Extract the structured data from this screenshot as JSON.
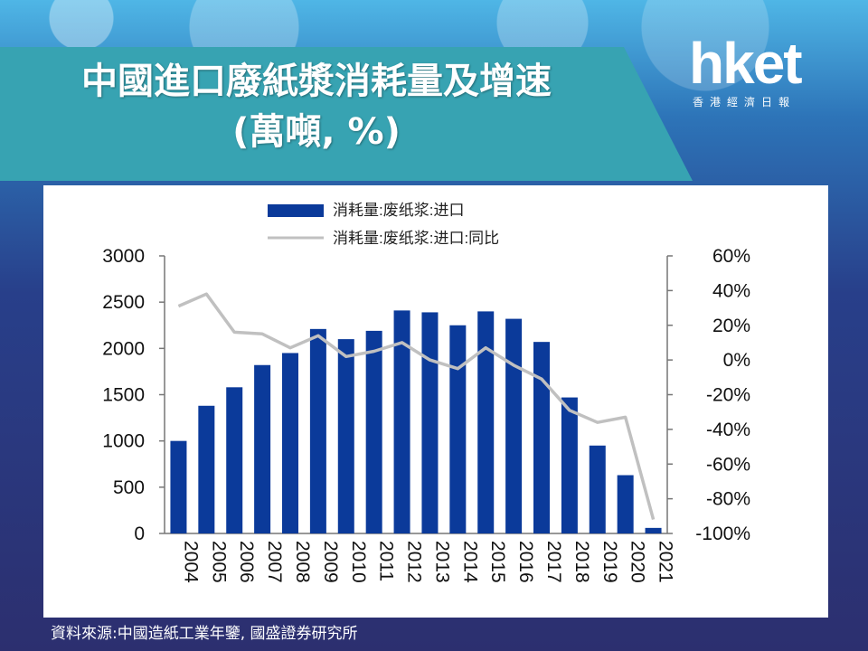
{
  "title_line1": "中國進口廢紙漿消耗量及增速",
  "title_line2": "(萬噸, %)",
  "logo": {
    "main": "hket",
    "sub": "香港經濟日報"
  },
  "source": "資料來源:中國造紙工業年鑒, 國盛證券研究所",
  "colors": {
    "bar": "#0b3a9a",
    "line": "#c0c0c0",
    "banner": "#37a3b2"
  },
  "chart_data": {
    "type": "bar",
    "categories": [
      "2004",
      "2005",
      "2006",
      "2007",
      "2008",
      "2009",
      "2010",
      "2011",
      "2012",
      "2013",
      "2014",
      "2015",
      "2016",
      "2017",
      "2018",
      "2019",
      "2020",
      "2021"
    ],
    "series": [
      {
        "name": "消耗量:废纸浆:进口",
        "type": "bar",
        "axis": "left",
        "values": [
          1000,
          1380,
          1580,
          1820,
          1950,
          2210,
          2100,
          2190,
          2410,
          2390,
          2250,
          2400,
          2320,
          2070,
          1470,
          950,
          630,
          60
        ]
      },
      {
        "name": "消耗量:废纸浆:进口:同比",
        "type": "line",
        "axis": "right",
        "values": [
          31,
          38,
          16,
          15,
          7,
          14,
          2,
          5,
          10,
          0,
          -5,
          7,
          -3,
          -11,
          -29,
          -36,
          -33,
          -92
        ]
      }
    ],
    "y_left": {
      "min": 0,
      "max": 3000,
      "ticks": [
        "3000",
        "2500",
        "2000",
        "1500",
        "1000",
        "500",
        "0"
      ]
    },
    "y_right": {
      "min": -100,
      "max": 60,
      "ticks": [
        "60%",
        "40%",
        "20%",
        "0%",
        "-20%",
        "-40%",
        "-60%",
        "-80%",
        "-100%"
      ]
    },
    "legend_position": "top",
    "grid": false
  }
}
